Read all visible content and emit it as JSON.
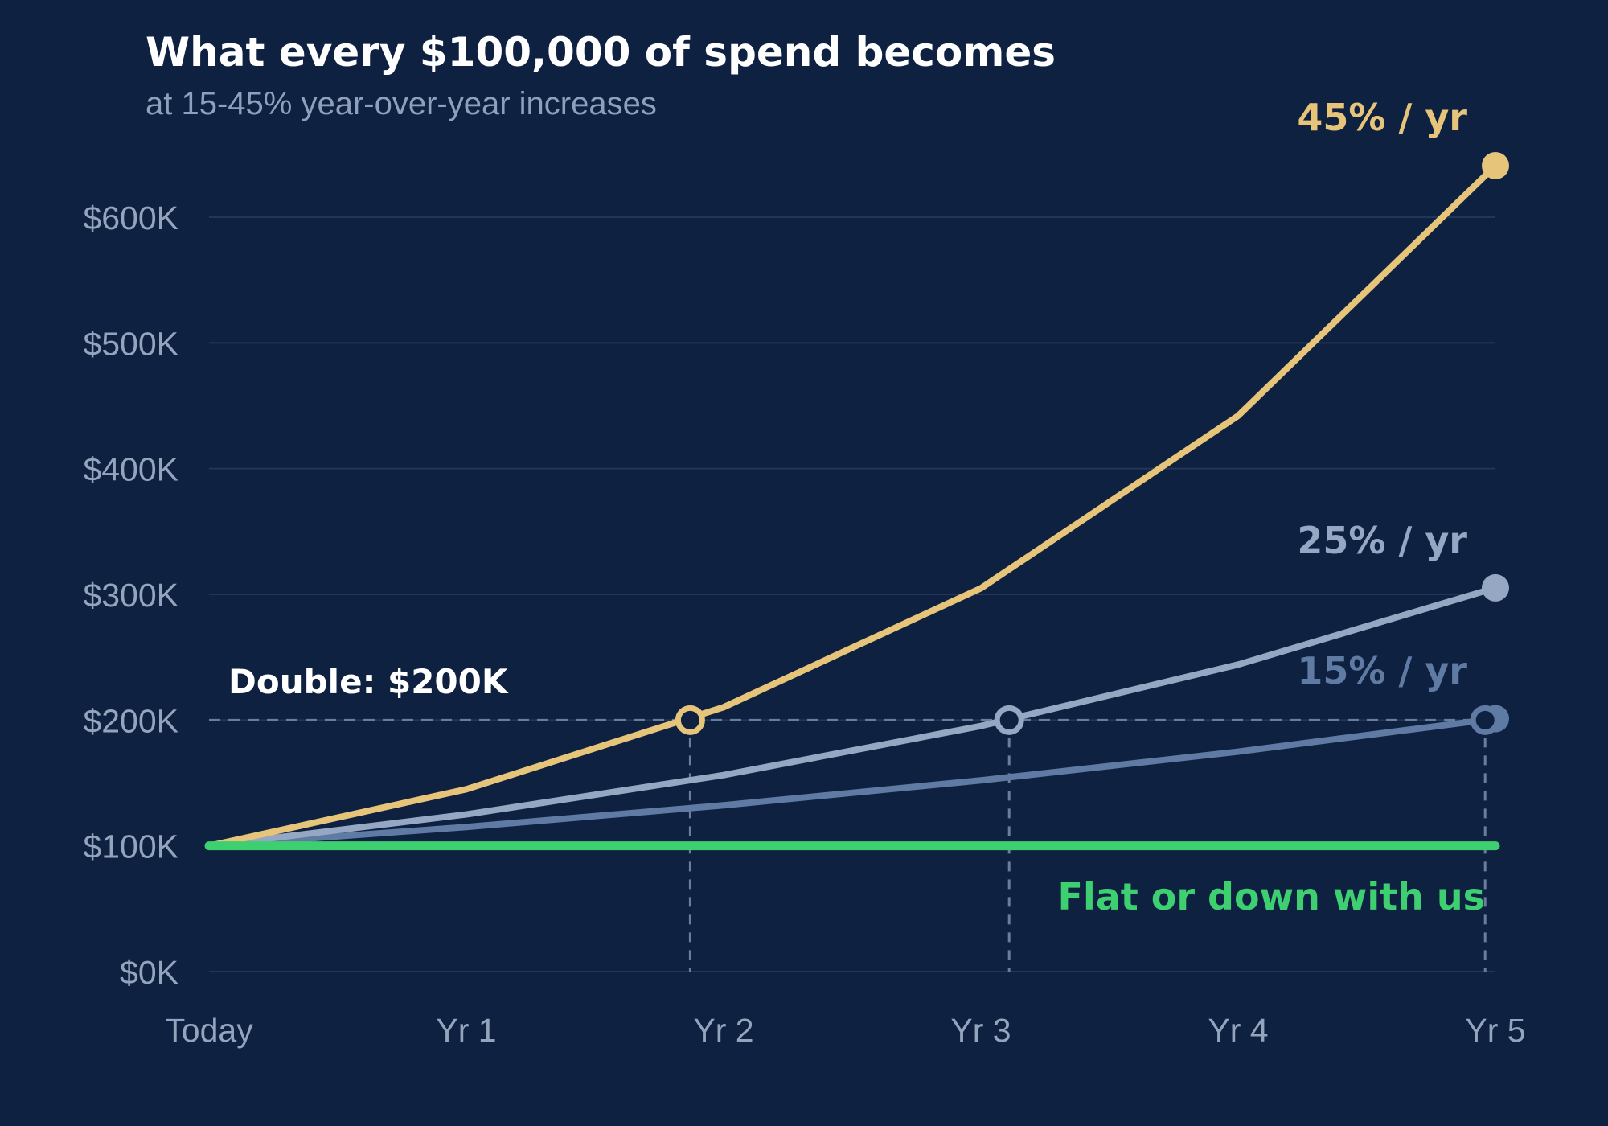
{
  "chart_data": {
    "type": "line",
    "title": "What every $100,000 of spend becomes",
    "subtitle": "at 15-45% year-over-year increases",
    "categories": [
      "Today",
      "Yr 1",
      "Yr 2",
      "Yr 3",
      "Yr 4",
      "Yr 5"
    ],
    "y_ticks": [
      "$0K",
      "$100K",
      "$200K",
      "$300K",
      "$400K",
      "$500K",
      "$600K"
    ],
    "ylim": [
      0,
      600000
    ],
    "grid": true,
    "series": [
      {
        "name": "45% / yr",
        "color": "#e6c57a",
        "values": [
          100000,
          145000,
          210250,
          304863,
          442051,
          640973
        ]
      },
      {
        "name": "25% / yr",
        "color": "#96a7c3",
        "values": [
          100000,
          125000,
          156250,
          195313,
          244141,
          305176
        ]
      },
      {
        "name": "15% / yr",
        "color": "#5f7aa3",
        "values": [
          100000,
          115000,
          132250,
          152088,
          174901,
          201136
        ]
      },
      {
        "name": "Flat or down with us",
        "color": "#3ecf70",
        "values": [
          100000,
          100000,
          100000,
          100000,
          100000,
          100000
        ]
      }
    ],
    "threshold": {
      "label": "Double: $200K",
      "value": 200000
    },
    "doubling_points": [
      {
        "x": 1.87,
        "series": "45% / yr"
      },
      {
        "x": 3.11,
        "series": "25% / yr"
      },
      {
        "x": 4.96,
        "series": "15% / yr"
      }
    ]
  }
}
